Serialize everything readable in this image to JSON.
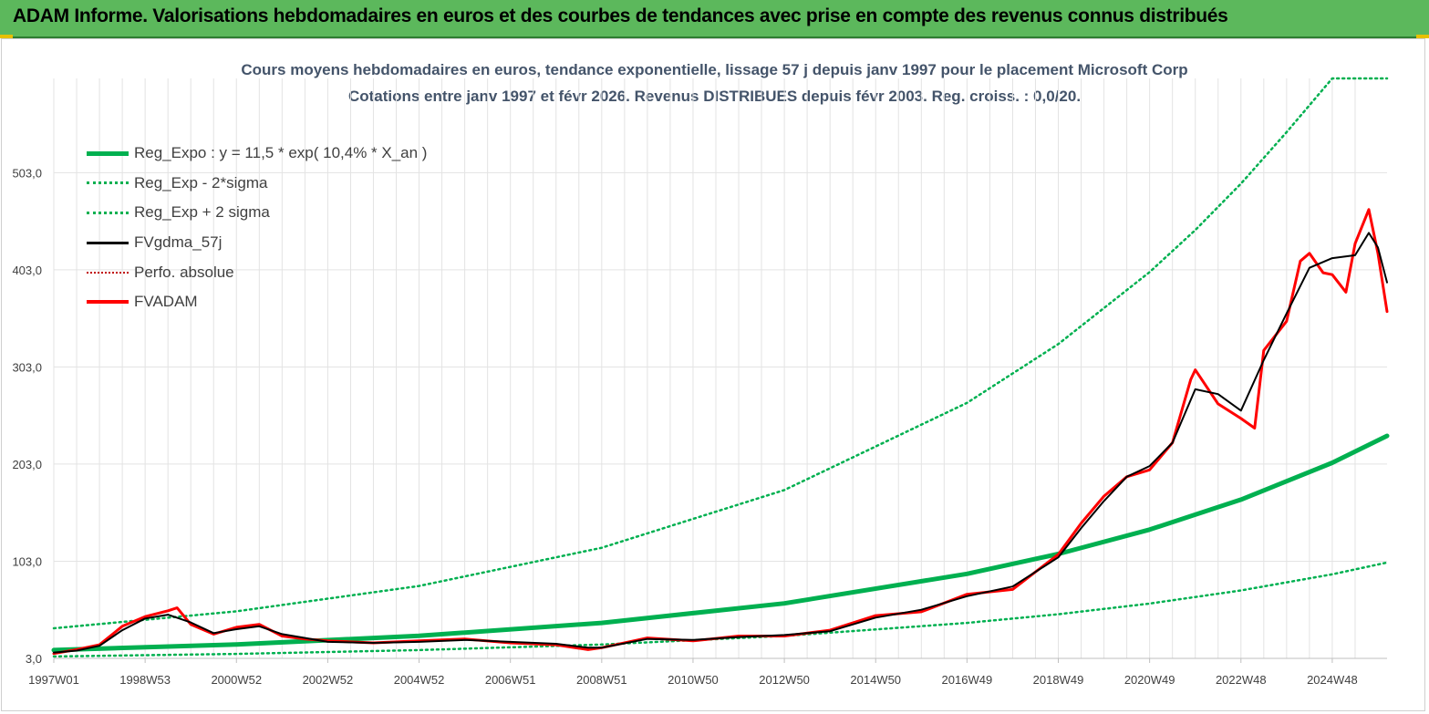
{
  "header": {
    "title": "ADAM Informe. Valorisations hebdomadaires en euros et des courbes de tendances avec prise en compte des revenus connus distribués"
  },
  "chart_data": {
    "type": "line",
    "title_line1": "Cours moyens hebdomadaires en euros, tendance exponentielle, lissage 57 j depuis janv 1997 pour le placement Microsoft Corp",
    "title_line2": "Cotations entre janv 1997 et févr 2026. Revenus DISTRIBUES depuis févr 2003. Reg. croiss. : 0,0/20.",
    "xlabel": "",
    "ylabel": "",
    "x_range": [
      1997.0,
      2026.2
    ],
    "ylim": [
      3.0,
      600.0
    ],
    "y_ticks": [
      "3,0",
      "103,0",
      "203,0",
      "303,0",
      "403,0",
      "503,0"
    ],
    "y_tick_values": [
      3,
      103,
      203,
      303,
      403,
      503
    ],
    "x_ticks": [
      "1997W01",
      "1998W53",
      "2000W52",
      "2002W52",
      "2004W52",
      "2006W51",
      "2008W51",
      "2010W50",
      "2012W50",
      "2014W50",
      "2016W49",
      "2018W49",
      "2020W49",
      "2022W48",
      "2024W48"
    ],
    "x_tick_values": [
      1997.0,
      1999.0,
      2001.0,
      2003.0,
      2005.0,
      2007.0,
      2009.0,
      2011.0,
      2013.0,
      2015.0,
      2017.0,
      2019.0,
      2021.0,
      2023.0,
      2025.0
    ],
    "grid": true,
    "legend_position": "top-left",
    "series": [
      {
        "name": "Reg_Expo : y = 11,5 * exp( 10,4% *  X_an )",
        "color": "#00b050",
        "style": "solid-thick",
        "x": [
          1997.0,
          2001.0,
          2005.0,
          2009.0,
          2013.0,
          2017.0,
          2019.0,
          2021.0,
          2023.0,
          2025.0,
          2026.2
        ],
        "y": [
          11.5,
          17.4,
          26.2,
          39.5,
          59.6,
          90.0,
          110.5,
          135.5,
          166.4,
          204.3,
          232.0
        ]
      },
      {
        "name": "Reg_Exp - 2*sigma",
        "color": "#00b050",
        "style": "dotted",
        "x": [
          1997.0,
          2001.0,
          2005.0,
          2009.0,
          2013.0,
          2017.0,
          2019.0,
          2021.0,
          2023.0,
          2025.0,
          2026.2
        ],
        "y": [
          5.0,
          7.6,
          11.5,
          17.3,
          26.1,
          39.5,
          48.4,
          59.4,
          72.9,
          89.5,
          101.7
        ]
      },
      {
        "name": "Reg_Exp + 2 sigma",
        "color": "#00b050",
        "style": "dotted",
        "x": [
          1997.0,
          2001.0,
          2005.0,
          2009.0,
          2013.0,
          2017.0,
          2019.0,
          2021.0,
          2022.0,
          2023.0,
          2024.0,
          2025.0,
          2026.2
        ],
        "y": [
          34.0,
          51.4,
          77.5,
          116.9,
          176.3,
          266.0,
          326.6,
          400.6,
          443.9,
          491.7,
          544.6,
          600.0,
          600.0
        ]
      },
      {
        "name": "FVgdma_57j",
        "color": "#000000",
        "style": "solid",
        "x": [
          1997.0,
          1997.5,
          1998.0,
          1998.5,
          1999.0,
          1999.5,
          2000.0,
          2000.5,
          2001.0,
          2001.5,
          2002.0,
          2002.5,
          2003.0,
          2004.0,
          2005.0,
          2006.0,
          2007.0,
          2008.0,
          2008.7,
          2009.0,
          2010.0,
          2011.0,
          2012.0,
          2013.0,
          2014.0,
          2015.0,
          2016.0,
          2017.0,
          2018.0,
          2019.0,
          2019.5,
          2020.0,
          2020.5,
          2021.0,
          2021.5,
          2022.0,
          2022.5,
          2023.0,
          2023.5,
          2024.0,
          2024.5,
          2025.0,
          2025.5,
          2025.8,
          2026.0,
          2026.2
        ],
        "y": [
          9.0,
          11.0,
          16.0,
          32.0,
          44.0,
          48.0,
          40.0,
          29.0,
          33.0,
          36.0,
          28.0,
          24.0,
          20.0,
          19.0,
          20.0,
          22.0,
          20.0,
          18.0,
          14.0,
          14.0,
          23.0,
          22.0,
          25.0,
          27.0,
          31.0,
          45.0,
          53.0,
          67.0,
          77.0,
          107.0,
          137.0,
          165.0,
          190.0,
          201.0,
          225.0,
          280.0,
          275.0,
          258.0,
          310.0,
          358.0,
          405.0,
          415.0,
          418.0,
          441.0,
          426.0,
          390.0
        ]
      },
      {
        "name": "Perfo. absolue",
        "color": "#c00000",
        "style": "dotted",
        "x": [
          1997.0,
          2026.2
        ],
        "y": [
          null,
          null
        ]
      },
      {
        "name": "FVADAM",
        "color": "#ff0000",
        "style": "solid-thick",
        "x": [
          1997.0,
          1997.5,
          1998.0,
          1998.5,
          1999.0,
          1999.5,
          1999.7,
          2000.0,
          2000.5,
          2001.0,
          2001.5,
          2002.0,
          2002.5,
          2003.0,
          2004.0,
          2005.0,
          2006.0,
          2007.0,
          2008.0,
          2008.7,
          2009.0,
          2010.0,
          2011.0,
          2012.0,
          2013.0,
          2014.0,
          2015.0,
          2016.0,
          2017.0,
          2018.0,
          2019.0,
          2019.5,
          2020.0,
          2020.5,
          2021.0,
          2021.5,
          2021.9,
          2022.0,
          2022.5,
          2023.0,
          2023.3,
          2023.5,
          2024.0,
          2024.3,
          2024.5,
          2024.8,
          2025.0,
          2025.3,
          2025.5,
          2025.8,
          2026.0,
          2026.2
        ],
        "y": [
          8.0,
          12.0,
          17.0,
          36.0,
          46.0,
          52.0,
          55.0,
          38.0,
          28.0,
          35.0,
          38.0,
          26.0,
          23.0,
          21.0,
          19.0,
          21.0,
          23.0,
          19.0,
          17.0,
          12.0,
          14.0,
          24.0,
          21.0,
          26.0,
          26.0,
          32.0,
          47.0,
          51.0,
          69.0,
          74.0,
          110.0,
          142.0,
          170.0,
          190.0,
          197.0,
          225.0,
          290.0,
          300.0,
          265.0,
          250.0,
          240.0,
          320.0,
          350.0,
          412.0,
          420.0,
          400.0,
          398.0,
          380.0,
          430.0,
          465.0,
          420.0,
          360.0
        ]
      }
    ]
  }
}
